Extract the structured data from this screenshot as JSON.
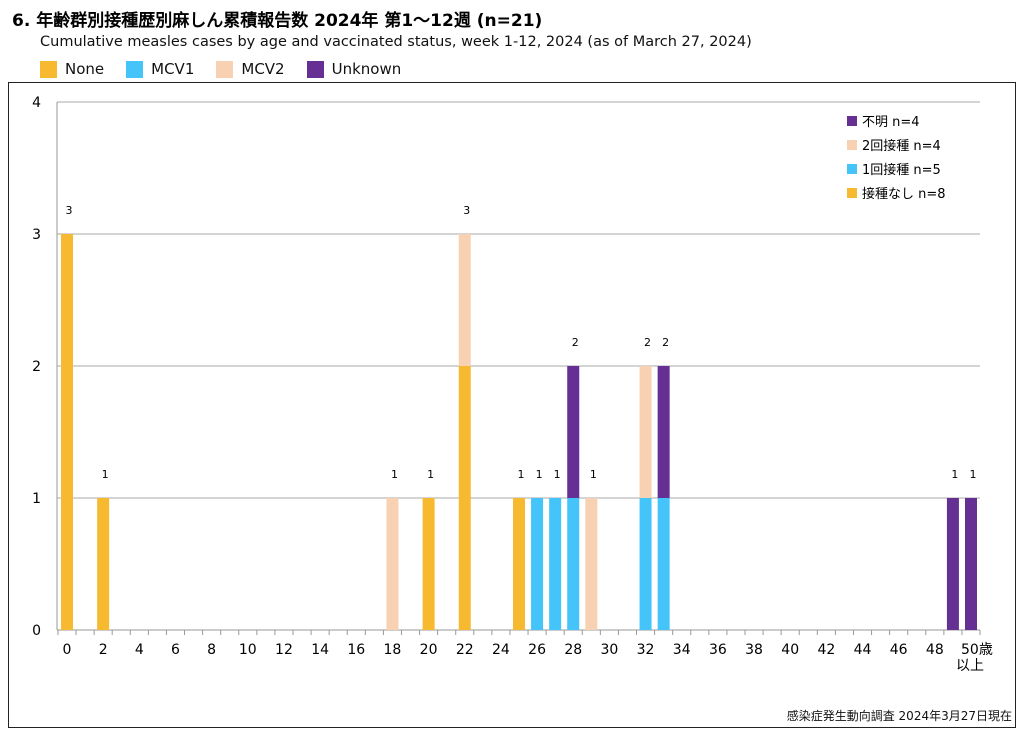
{
  "title": "6. 年齢群別接種歴別麻しん累積報告数  2024年 第1～12週 (n=21)",
  "subtitle": "Cumulative measles cases by age and vaccinated status, week 1-12, 2024 (as of March 27, 2024)",
  "top_legend": [
    {
      "label": "None",
      "color": "#F7B92F"
    },
    {
      "label": "MCV1",
      "color": "#44C4F9"
    },
    {
      "label": "MCV2",
      "color": "#F8D1B2"
    },
    {
      "label": "Unknown",
      "color": "#652F93"
    }
  ],
  "footnote": "感染症発生動向調査 2024年3月27日現在",
  "chart_data": {
    "type": "bar",
    "stacked": true,
    "title": "6. 年齢群別接種歴別麻しん累積報告数  2024年 第1～12週 (n=21)",
    "xlabel": "",
    "ylabel": "",
    "ylim": [
      0,
      4
    ],
    "xlim": [
      0,
      50
    ],
    "yticks": [
      "0",
      "1",
      "2",
      "3",
      "4"
    ],
    "xticks": [
      "0",
      "2",
      "4",
      "6",
      "8",
      "10",
      "12",
      "14",
      "16",
      "18",
      "20",
      "22",
      "24",
      "26",
      "28",
      "30",
      "32",
      "34",
      "36",
      "38",
      "40",
      "42",
      "44",
      "46",
      "48",
      "50歳"
    ],
    "last_tick_sub": "以上",
    "legend": [
      {
        "label": "不明 n=4",
        "key": "unknown",
        "color": "#652F93"
      },
      {
        "label": "2回接種 n=4",
        "key": "mcv2",
        "color": "#F8D1B2"
      },
      {
        "label": "1回接種 n=5",
        "key": "mcv1",
        "color": "#44C4F9"
      },
      {
        "label": "接種なし n=8",
        "key": "none",
        "color": "#F7B92F"
      }
    ],
    "legend_position": "top-right",
    "series_order": [
      "none",
      "mcv1",
      "mcv2",
      "unknown"
    ],
    "colors": {
      "none": "#F7B92F",
      "mcv1": "#44C4F9",
      "mcv2": "#F8D1B2",
      "unknown": "#652F93"
    },
    "bars": [
      {
        "age": 0,
        "none": 3,
        "label": "3"
      },
      {
        "age": 2,
        "none": 1,
        "label": "1"
      },
      {
        "age": 18,
        "mcv2": 1,
        "label": "1"
      },
      {
        "age": 20,
        "none": 1,
        "label": "1"
      },
      {
        "age": 22,
        "none": 2,
        "mcv2": 1,
        "label": "3"
      },
      {
        "age": 25,
        "none": 1,
        "label": "1"
      },
      {
        "age": 26,
        "mcv1": 1,
        "label": "1"
      },
      {
        "age": 27,
        "mcv1": 1,
        "label": "1"
      },
      {
        "age": 28,
        "mcv1": 1,
        "unknown": 1,
        "label": "2"
      },
      {
        "age": 29,
        "mcv2": 1,
        "label": "1"
      },
      {
        "age": 32,
        "mcv1": 1,
        "mcv2": 1,
        "label": "2"
      },
      {
        "age": 33,
        "mcv1": 1,
        "unknown": 1,
        "label": "2"
      },
      {
        "age": 49,
        "unknown": 1,
        "label": "1"
      },
      {
        "age": 50,
        "unknown": 1,
        "label": "1"
      }
    ]
  }
}
